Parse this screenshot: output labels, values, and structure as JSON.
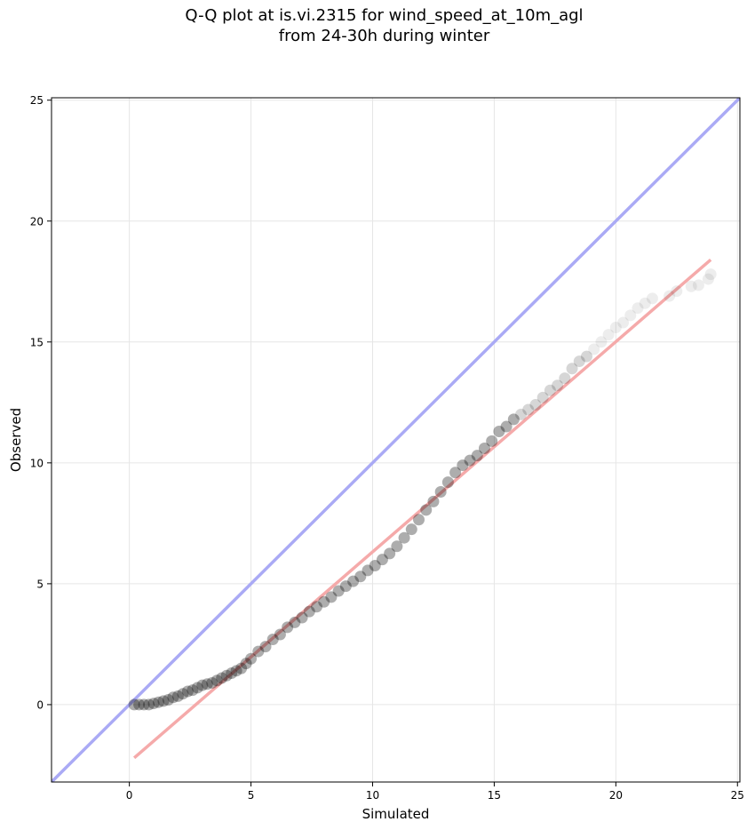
{
  "chart_data": {
    "type": "scatter",
    "title_line1": "Q-Q plot at is.vi.2315 for wind_speed_at_10m_agl",
    "title_line2": "from 24-30h during winter",
    "xlabel": "Simulated",
    "ylabel": "Observed",
    "xlim": [
      -3.2,
      25.1
    ],
    "ylim": [
      -3.2,
      25.1
    ],
    "xticks": [
      0,
      5,
      10,
      15,
      20,
      25
    ],
    "yticks": [
      0,
      5,
      10,
      15,
      20,
      25
    ],
    "grid": true,
    "identity_line": {
      "x": [
        -3.2,
        25.1
      ],
      "y": [
        -3.2,
        25.1
      ],
      "color": "#aaaaf5"
    },
    "fit_line": {
      "x": [
        0.2,
        23.9
      ],
      "y": [
        -2.2,
        18.4
      ],
      "color": "#f5aaaa"
    },
    "points": {
      "color": "#000000",
      "x": [
        0.2,
        0.4,
        0.6,
        0.8,
        1.0,
        1.2,
        1.4,
        1.6,
        1.8,
        2.0,
        2.2,
        2.4,
        2.6,
        2.8,
        3.0,
        3.2,
        3.4,
        3.6,
        3.8,
        4.0,
        4.2,
        4.4,
        4.6,
        4.8,
        5.0,
        5.3,
        5.6,
        5.9,
        6.2,
        6.5,
        6.8,
        7.1,
        7.4,
        7.7,
        8.0,
        8.3,
        8.6,
        8.9,
        9.2,
        9.5,
        9.8,
        10.1,
        10.4,
        10.7,
        11.0,
        11.3,
        11.6,
        11.9,
        12.2,
        12.5,
        12.8,
        13.1,
        13.4,
        13.7,
        14.0,
        14.3,
        14.6,
        14.9,
        15.2,
        15.5,
        15.8,
        16.1,
        16.4,
        16.7,
        17.0,
        17.3,
        17.6,
        17.9,
        18.2,
        18.5,
        18.8,
        19.1,
        19.4,
        19.7,
        20.0,
        20.3,
        20.6,
        20.9,
        21.2,
        21.5,
        22.2,
        22.5,
        23.1,
        23.4,
        23.8,
        23.9
      ],
      "y": [
        0.0,
        0.0,
        0.0,
        0.0,
        0.05,
        0.1,
        0.15,
        0.2,
        0.3,
        0.35,
        0.45,
        0.55,
        0.6,
        0.7,
        0.8,
        0.85,
        0.9,
        1.0,
        1.1,
        1.2,
        1.3,
        1.4,
        1.5,
        1.7,
        1.9,
        2.2,
        2.4,
        2.7,
        2.9,
        3.2,
        3.4,
        3.6,
        3.85,
        4.05,
        4.25,
        4.45,
        4.7,
        4.9,
        5.1,
        5.3,
        5.55,
        5.75,
        6.0,
        6.25,
        6.55,
        6.9,
        7.25,
        7.65,
        8.05,
        8.4,
        8.8,
        9.2,
        9.6,
        9.9,
        10.1,
        10.3,
        10.6,
        10.9,
        11.3,
        11.5,
        11.8,
        12.0,
        12.2,
        12.4,
        12.7,
        13.0,
        13.2,
        13.5,
        13.9,
        14.2,
        14.4,
        14.7,
        15.0,
        15.3,
        15.6,
        15.8,
        16.1,
        16.4,
        16.6,
        16.8,
        16.9,
        17.1,
        17.3,
        17.35,
        17.6,
        17.8
      ]
    }
  }
}
